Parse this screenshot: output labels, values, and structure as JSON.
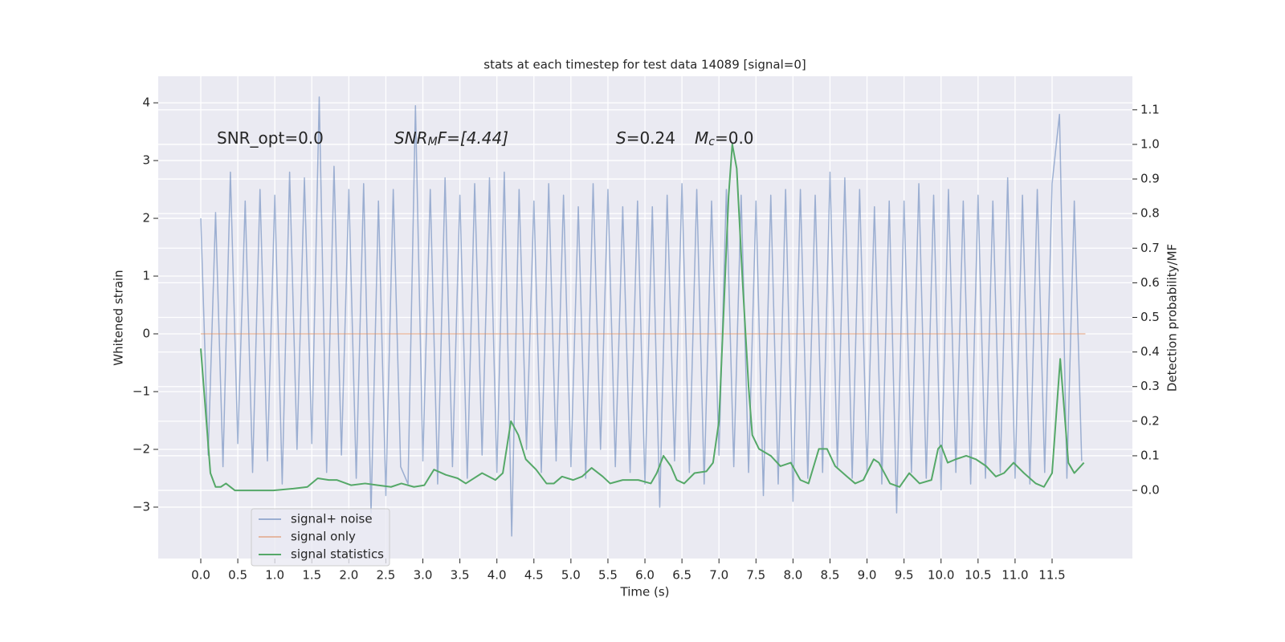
{
  "chart_data": {
    "type": "line",
    "title": "stats at each timestep for test data 14089 [signal=0]",
    "xlabel": "Time (s)",
    "ylabel": "Whitened strain",
    "y2label": "Detection probability/MF",
    "annotations": [
      {
        "parts": [
          "SNR_opt=0.0"
        ]
      },
      {
        "parts": [
          "SNR",
          "M",
          "F=[4.44]"
        ]
      },
      {
        "parts": [
          "S",
          "=0.24",
          "M",
          "c",
          "=0.0"
        ]
      }
    ],
    "xlim": [
      -0.575,
      12.585
    ],
    "xticks": [
      {
        "value": 0,
        "label": "0.0"
      },
      0.5,
      {
        "value": 1,
        "label": "1.0"
      },
      1.5,
      {
        "value": 2,
        "label": "2.0"
      },
      2.5,
      {
        "value": 3,
        "label": "3.0"
      },
      3.5,
      {
        "value": 4,
        "label": "4.0"
      },
      4.5,
      {
        "value": 5,
        "label": "5.0"
      },
      5.5,
      {
        "value": 6,
        "label": "6.0"
      },
      6.5,
      {
        "value": 7,
        "label": "7.0"
      },
      7.5,
      {
        "value": 8,
        "label": "8.0"
      },
      8.5,
      {
        "value": 9,
        "label": "9.0"
      },
      9.5,
      {
        "value": 10,
        "label": "10.0"
      },
      10.5,
      {
        "value": 11,
        "label": "11.0"
      },
      11.5
    ],
    "ylim": [
      -3.89,
      4.46
    ],
    "yticks": [
      {
        "value": -3,
        "label": "−3"
      },
      {
        "value": -2,
        "label": "−2"
      },
      {
        "value": -1,
        "label": "−1"
      },
      0,
      1,
      2,
      3,
      4
    ],
    "y2lim": [
      -0.197,
      1.197
    ],
    "y2ticks": [
      {
        "value": 0,
        "label": "0.0"
      },
      0.1,
      0.2,
      0.3,
      0.4,
      0.5,
      0.6,
      0.7,
      0.8,
      0.9,
      {
        "value": 1,
        "label": "1.0"
      },
      1.1
    ],
    "grid": true,
    "legend": "lower left",
    "series": [
      {
        "name": "signal+ noise",
        "color": "#4c72b0",
        "alpha": 0.5,
        "x": [
          0.0,
          0.1,
          0.2,
          0.3,
          0.4,
          0.5,
          0.6,
          0.7,
          0.8,
          0.9,
          1.0,
          1.1,
          1.2,
          1.3,
          1.4,
          1.5,
          1.6,
          1.7,
          1.8,
          1.9,
          2.0,
          2.1,
          2.2,
          2.3,
          2.4,
          2.5,
          2.6,
          2.7,
          2.8,
          2.9,
          3.0,
          3.1,
          3.2,
          3.3,
          3.4,
          3.5,
          3.6,
          3.7,
          3.8,
          3.9,
          4.0,
          4.1,
          4.2,
          4.3,
          4.4,
          4.5,
          4.6,
          4.7,
          4.8,
          4.9,
          5.0,
          5.1,
          5.2,
          5.3,
          5.4,
          5.5,
          5.6,
          5.7,
          5.8,
          5.9,
          6.0,
          6.1,
          6.2,
          6.3,
          6.4,
          6.5,
          6.6,
          6.7,
          6.8,
          6.9,
          7.0,
          7.1,
          7.2,
          7.3,
          7.4,
          7.5,
          7.6,
          7.7,
          7.8,
          7.9,
          8.0,
          8.1,
          8.2,
          8.3,
          8.4,
          8.5,
          8.6,
          8.7,
          8.8,
          8.9,
          9.0,
          9.1,
          9.2,
          9.3,
          9.4,
          9.5,
          9.6,
          9.7,
          9.8,
          9.9,
          10.0,
          10.1,
          10.2,
          10.3,
          10.4,
          10.5,
          10.6,
          10.7,
          10.8,
          10.9,
          11.0,
          11.1,
          11.2,
          11.3,
          11.4,
          11.5,
          11.6,
          11.7,
          11.8,
          11.9
        ],
        "values": [
          2.0,
          -2.1,
          2.1,
          -2.3,
          2.8,
          -1.9,
          2.3,
          -2.4,
          2.5,
          -2.2,
          2.4,
          -2.6,
          2.8,
          -2.0,
          2.7,
          -1.9,
          4.1,
          -2.4,
          2.9,
          -2.1,
          2.5,
          -2.5,
          2.6,
          -3.1,
          2.3,
          -2.8,
          2.5,
          -2.3,
          -2.6,
          3.95,
          -2.2,
          2.5,
          -2.6,
          2.7,
          -2.3,
          2.4,
          -2.5,
          2.6,
          -2.1,
          2.7,
          -2.4,
          2.8,
          -3.5,
          2.5,
          -2.0,
          2.3,
          -2.4,
          2.6,
          -2.2,
          2.4,
          -2.3,
          2.2,
          -2.5,
          2.6,
          -2.0,
          2.5,
          -2.3,
          2.2,
          -2.4,
          2.3,
          -2.6,
          2.2,
          -3.0,
          2.4,
          -2.2,
          2.6,
          -2.4,
          2.5,
          -2.6,
          2.3,
          -2.1,
          2.5,
          -2.3,
          2.4,
          -2.4,
          2.3,
          -2.8,
          2.4,
          -2.6,
          2.5,
          -2.9,
          2.5,
          -2.5,
          2.4,
          -2.4,
          2.8,
          -2.3,
          2.7,
          -2.5,
          2.5,
          -2.4,
          2.2,
          -2.6,
          2.3,
          -3.1,
          2.3,
          -2.4,
          2.6,
          -2.5,
          2.4,
          -2.7,
          2.5,
          -2.4,
          2.3,
          -2.6,
          2.4,
          -2.5,
          2.3,
          -2.4,
          2.7,
          -2.5,
          2.4,
          -2.6,
          2.5,
          -2.4,
          2.6,
          3.8,
          -2.5,
          2.3,
          -2.2
        ]
      },
      {
        "name": "signal only",
        "color": "#dd8452",
        "alpha": 0.5,
        "x": [
          0.0,
          11.95
        ],
        "values": [
          0,
          0
        ]
      },
      {
        "name": "signal statistics",
        "color": "#55a868",
        "axis": "y2",
        "x": [
          0.0,
          0.13,
          0.2,
          0.27,
          0.34,
          0.46,
          0.65,
          0.98,
          1.25,
          1.44,
          1.58,
          1.73,
          1.84,
          2.03,
          2.22,
          2.39,
          2.57,
          2.71,
          2.88,
          3.02,
          3.15,
          3.31,
          3.47,
          3.58,
          3.8,
          3.98,
          4.08,
          4.19,
          4.29,
          4.39,
          4.53,
          4.67,
          4.77,
          4.88,
          5.03,
          5.15,
          5.28,
          5.43,
          5.53,
          5.7,
          5.91,
          6.08,
          6.16,
          6.25,
          6.35,
          6.43,
          6.53,
          6.67,
          6.83,
          6.92,
          7.0,
          7.08,
          7.13,
          7.18,
          7.24,
          7.32,
          7.4,
          7.45,
          7.54,
          7.7,
          7.83,
          7.97,
          8.1,
          8.21,
          8.35,
          8.46,
          8.57,
          8.73,
          8.84,
          8.95,
          9.09,
          9.16,
          9.31,
          9.44,
          9.57,
          9.71,
          9.87,
          9.96,
          10.0,
          10.09,
          10.2,
          10.34,
          10.47,
          10.61,
          10.74,
          10.85,
          10.98,
          11.12,
          11.28,
          11.39,
          11.5,
          11.61,
          11.72,
          11.8,
          11.93
        ],
        "values": [
          0.41,
          0.05,
          0.01,
          0.01,
          0.02,
          0.0,
          0.0,
          0.0,
          0.005,
          0.01,
          0.035,
          0.03,
          0.03,
          0.015,
          0.02,
          0.015,
          0.01,
          0.02,
          0.01,
          0.015,
          0.06,
          0.045,
          0.035,
          0.02,
          0.05,
          0.03,
          0.05,
          0.2,
          0.16,
          0.09,
          0.06,
          0.02,
          0.02,
          0.04,
          0.03,
          0.04,
          0.065,
          0.04,
          0.02,
          0.03,
          0.03,
          0.02,
          0.05,
          0.1,
          0.07,
          0.03,
          0.02,
          0.05,
          0.055,
          0.08,
          0.2,
          0.6,
          0.85,
          1.0,
          0.93,
          0.6,
          0.3,
          0.16,
          0.12,
          0.1,
          0.07,
          0.08,
          0.03,
          0.02,
          0.12,
          0.12,
          0.07,
          0.04,
          0.02,
          0.03,
          0.09,
          0.08,
          0.02,
          0.01,
          0.05,
          0.02,
          0.03,
          0.12,
          0.13,
          0.08,
          0.09,
          0.1,
          0.09,
          0.07,
          0.04,
          0.05,
          0.08,
          0.05,
          0.02,
          0.01,
          0.05,
          0.38,
          0.08,
          0.05,
          0.08
        ]
      }
    ]
  }
}
